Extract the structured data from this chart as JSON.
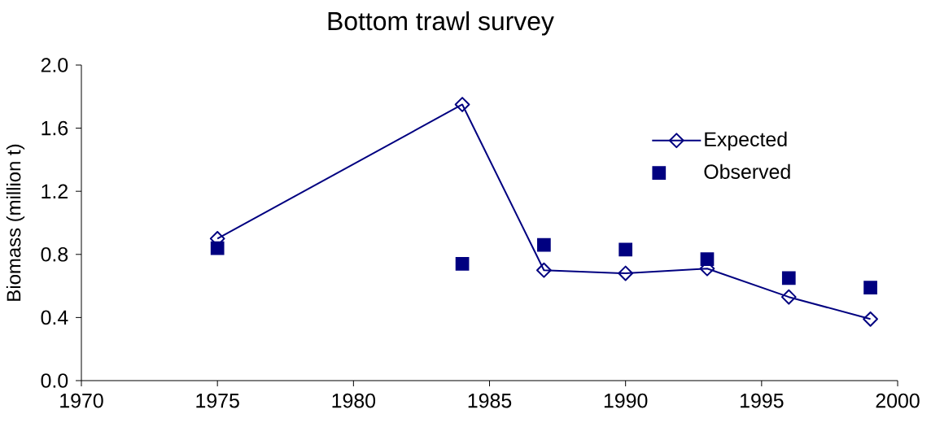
{
  "chart_data": {
    "type": "line",
    "title": "Bottom trawl survey",
    "ylabel": "Biomass (million t)",
    "x": [
      1975,
      1984,
      1987,
      1990,
      1993,
      1996,
      1999
    ],
    "series": [
      {
        "name": "Expected",
        "color": "#000080",
        "marker": "diamond",
        "values": [
          0.9,
          1.75,
          0.7,
          0.68,
          0.71,
          0.53,
          0.39
        ]
      },
      {
        "name": "Observed",
        "type": "scatter",
        "color": "#000080",
        "marker": "square",
        "values": [
          0.84,
          0.74,
          0.86,
          0.83,
          0.77,
          0.65,
          0.59
        ]
      }
    ],
    "xlim": [
      1970,
      2000
    ],
    "xticks": [
      1970,
      1975,
      1980,
      1985,
      1990,
      1995,
      2000
    ],
    "ylim": [
      0,
      2.0
    ],
    "yticks": [
      {
        "value": 0,
        "label": "0.0"
      },
      {
        "value": 0.4,
        "label": "0.4"
      },
      {
        "value": 0.8,
        "label": "0.8"
      },
      {
        "value": 1.2,
        "label": "1.2"
      },
      {
        "value": 1.6,
        "label": "1.6"
      },
      {
        "value": 2.0,
        "label": "2.0"
      }
    ],
    "grid": false,
    "legend": "top right"
  }
}
